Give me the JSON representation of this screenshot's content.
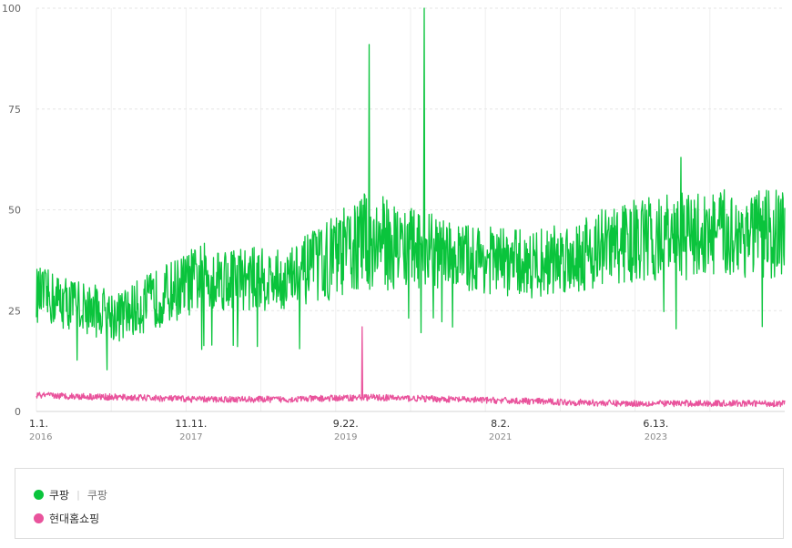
{
  "chart_data": {
    "type": "line",
    "y_ticks": [
      "0",
      "25",
      "50",
      "75",
      "100"
    ],
    "ylim": [
      0,
      100
    ],
    "x_ticks": [
      {
        "main": "1.1.",
        "year": "2016"
      },
      {
        "main": "11.11.",
        "year": "2017"
      },
      {
        "main": "9.22.",
        "year": "2019"
      },
      {
        "main": "8.2.",
        "year": "2021"
      },
      {
        "main": "6.13.",
        "year": "2023"
      }
    ],
    "grid": true,
    "legend_placement": "bottom",
    "series": [
      {
        "name": "쿠팡",
        "sub_label": "쿠팡",
        "color": "#0ac43c",
        "approx_level_by_year": [
          {
            "year": "2016",
            "low": 22,
            "high": 36
          },
          {
            "year": "2017",
            "low": 17,
            "high": 30
          },
          {
            "year": "2018",
            "low": 25,
            "high": 42
          },
          {
            "year": "2019",
            "low": 25,
            "high": 40
          },
          {
            "year": "2020",
            "low": 30,
            "high": 55
          },
          {
            "year": "2021",
            "low": 30,
            "high": 47
          },
          {
            "year": "2022",
            "low": 28,
            "high": 45
          },
          {
            "year": "2023",
            "low": 31,
            "high": 52
          },
          {
            "year": "2024",
            "low": 33,
            "high": 55
          }
        ],
        "peaks": [
          {
            "date": "2020-01",
            "value": 91
          },
          {
            "date": "2020-09",
            "value": 100
          },
          {
            "date": "2023-10",
            "value": 63
          }
        ]
      },
      {
        "name": "현대홈쇼핑",
        "color": "#e9539c",
        "approx_level_by_year": [
          {
            "year": "2016",
            "value": 4
          },
          {
            "year": "2017",
            "value": 3.5
          },
          {
            "year": "2018",
            "value": 3
          },
          {
            "year": "2019",
            "value": 3
          },
          {
            "year": "2020",
            "value": 3.5
          },
          {
            "year": "2021",
            "value": 3
          },
          {
            "year": "2022",
            "value": 2.5
          },
          {
            "year": "2023",
            "value": 2
          },
          {
            "year": "2024",
            "value": 2
          }
        ],
        "peaks": [
          {
            "date": "2019-12",
            "value": 21
          }
        ]
      }
    ]
  }
}
